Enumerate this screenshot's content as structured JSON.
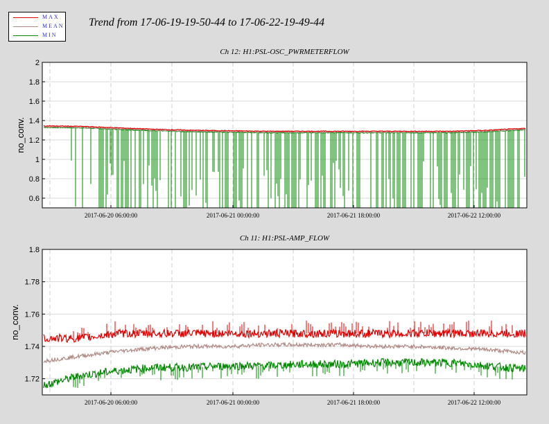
{
  "title": "Trend from 17-06-19-19-50-44 to 17-06-22-19-49-44",
  "legend": [
    {
      "label": "MAX",
      "color": "#e00000"
    },
    {
      "label": "MEAN",
      "color": "#b08a84"
    },
    {
      "label": "MIN",
      "color": "#008800"
    }
  ],
  "chart_data": [
    {
      "type": "line",
      "title": "Ch 12: H1:PSL-OSC_PWRMETERFLOW",
      "ylabel": "no_conv.",
      "ylim": [
        0.5,
        2.0
      ],
      "yticks": [
        "0.6",
        "0.8",
        "1",
        "1.2",
        "1.4",
        "1.6",
        "1.8",
        "2"
      ],
      "xticks": [
        "2017-06-20 06:00:00",
        "2017-06-21 00:00:00",
        "2017-06-21 18:00:00",
        "2017-06-22 12:00:00"
      ],
      "series": [
        {
          "name": "MAX",
          "color": "#e00000",
          "values": [
            1.345,
            1.34,
            1.325,
            1.31,
            1.3,
            1.295,
            1.29,
            1.29,
            1.29,
            1.29,
            1.29,
            1.29,
            1.3,
            1.32
          ]
        },
        {
          "name": "MEAN",
          "color": "#b08a84",
          "values": [
            1.335,
            1.33,
            1.315,
            1.3,
            1.29,
            1.285,
            1.28,
            1.28,
            1.28,
            1.28,
            1.28,
            1.28,
            1.29,
            1.31
          ]
        },
        {
          "name": "MIN",
          "color": "#008800",
          "values": [
            1.33,
            1.325,
            1.31,
            1.295,
            1.285,
            1.28,
            1.275,
            1.275,
            1.275,
            1.275,
            1.275,
            1.275,
            1.285,
            1.305
          ]
        }
      ]
    },
    {
      "type": "line",
      "title": "Ch 11: H1:PSL-AMP_FLOW",
      "ylabel": "no_conv.",
      "ylim": [
        1.71,
        1.8
      ],
      "yticks": [
        "1.72",
        "1.74",
        "1.76",
        "1.78",
        "1.8"
      ],
      "xticks": [
        "2017-06-20 06:00:00",
        "2017-06-21 00:00:00",
        "2017-06-21 18:00:00",
        "2017-06-22 12:00:00"
      ],
      "series": [
        {
          "name": "MAX",
          "color": "#e00000",
          "values": [
            1.745,
            1.745,
            1.748,
            1.748,
            1.748,
            1.748,
            1.748,
            1.748,
            1.748,
            1.748,
            1.748,
            1.748,
            1.748,
            1.748
          ]
        },
        {
          "name": "MEAN",
          "color": "#b08a84",
          "values": [
            1.731,
            1.734,
            1.737,
            1.739,
            1.74,
            1.74,
            1.741,
            1.741,
            1.741,
            1.74,
            1.74,
            1.739,
            1.738,
            1.736
          ]
        },
        {
          "name": "MIN",
          "color": "#008800",
          "values": [
            1.716,
            1.722,
            1.725,
            1.727,
            1.727,
            1.728,
            1.728,
            1.729,
            1.729,
            1.73,
            1.73,
            1.73,
            1.728,
            1.726
          ]
        }
      ]
    }
  ]
}
